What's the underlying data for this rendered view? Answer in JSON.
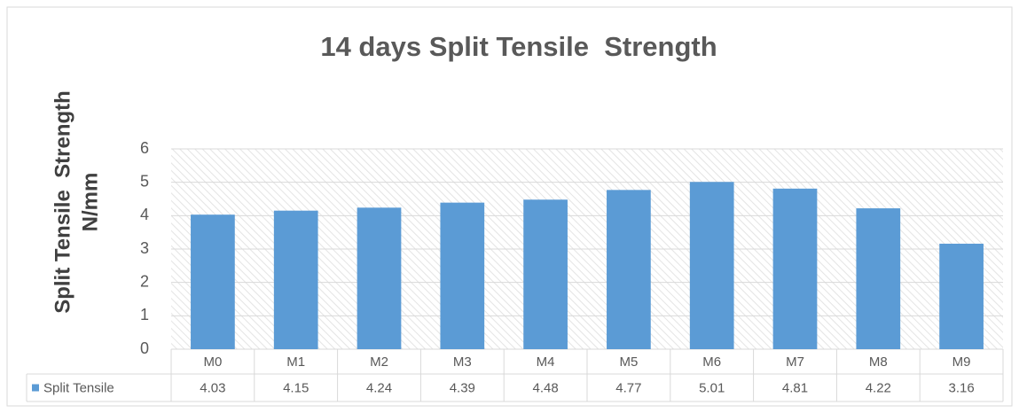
{
  "chart_data": {
    "type": "bar",
    "title": "14 days Split Tensile  Strength",
    "y_label": [
      "Split Tensile  Strength",
      "N/mm"
    ],
    "categories": [
      "M0",
      "M1",
      "M2",
      "M3",
      "M4",
      "M5",
      "M6",
      "M7",
      "M8",
      "M9"
    ],
    "series": [
      {
        "name": "Split Tensile",
        "color": "#5b9bd5",
        "values": [
          4.03,
          4.15,
          4.24,
          4.39,
          4.48,
          4.77,
          5.01,
          4.81,
          4.22,
          3.16
        ]
      }
    ],
    "ylim": [
      0,
      6
    ],
    "yticks": [
      0,
      1,
      2,
      3,
      4,
      5,
      6
    ],
    "grid": true,
    "data_table": true
  }
}
